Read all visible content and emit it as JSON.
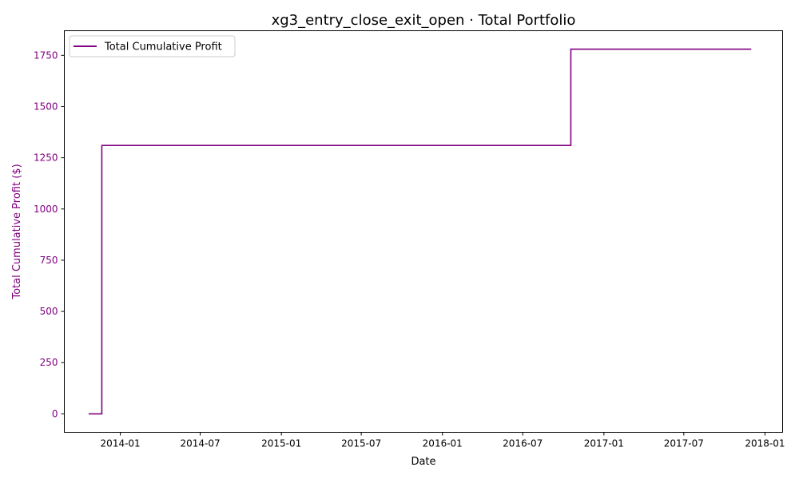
{
  "chart_data": {
    "type": "line",
    "title": "xg3_entry_close_exit_open · Total Portfolio",
    "xlabel": "Date",
    "ylabel": "Total Cumulative Profit ($)",
    "x_tick_labels": [
      "2014-01",
      "2014-07",
      "2015-01",
      "2015-07",
      "2016-01",
      "2016-07",
      "2017-01",
      "2017-07",
      "2018-01"
    ],
    "x_tick_dates": [
      "2014-01-01",
      "2014-07-01",
      "2015-01-01",
      "2015-07-01",
      "2016-01-01",
      "2016-07-01",
      "2017-01-01",
      "2017-07-01",
      "2018-01-01"
    ],
    "xlim": [
      "2013-08-27",
      "2018-02-10"
    ],
    "ylim": [
      -90,
      1870
    ],
    "y_ticks": [
      0,
      250,
      500,
      750,
      1000,
      1250,
      1500,
      1750
    ],
    "grid": false,
    "legend_position": "top-left",
    "series": [
      {
        "name": "Total Cumulative Profit",
        "color": "#800080",
        "step": true,
        "x": [
          "2013-10-21",
          "2013-11-20",
          "2013-11-20",
          "2016-10-18",
          "2016-10-18",
          "2017-12-01"
        ],
        "y": [
          0,
          0,
          1310,
          1310,
          1780,
          1780
        ]
      }
    ]
  }
}
